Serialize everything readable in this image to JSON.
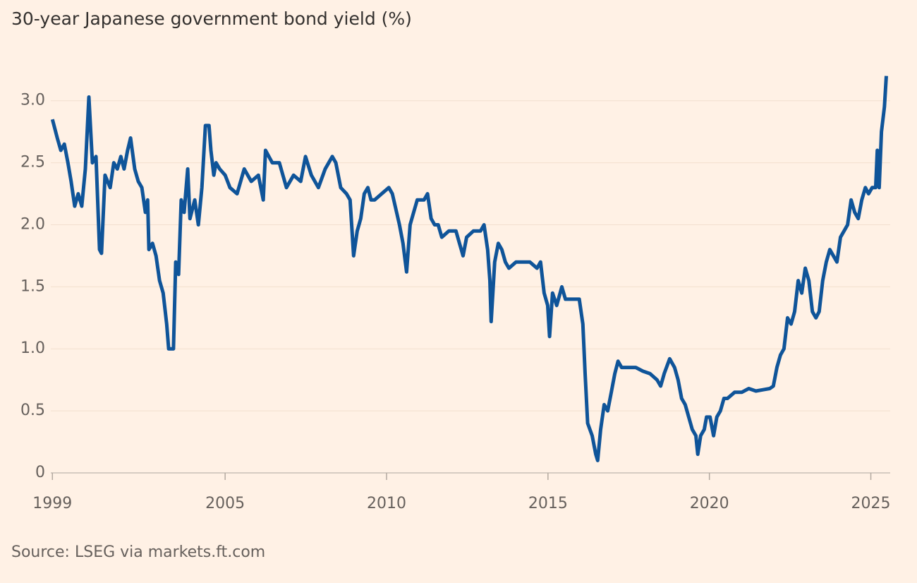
{
  "chart_data": {
    "type": "line",
    "title": "30-year Japanese government bond yield (%)",
    "source": "Source: LSEG via markets.ft.com",
    "color": "#0f5499",
    "grid": true,
    "xlim": [
      1999.6,
      2025.6
    ],
    "xticks": [
      {
        "value": 1999.65,
        "label": "1999"
      },
      2005,
      2010,
      2015,
      2020,
      2025
    ],
    "ylim": [
      0,
      3.3
    ],
    "yticks": [
      0,
      0.5,
      {
        "value": 1,
        "label": "1.0"
      },
      1.5,
      {
        "value": 2,
        "label": "2.0"
      },
      2.5,
      {
        "value": 3,
        "label": "3.0"
      }
    ],
    "x": [
      1999.65,
      1999.8,
      1999.91,
      2000.02,
      2000.13,
      2000.23,
      2000.34,
      2000.45,
      2000.56,
      2000.67,
      2000.78,
      2000.89,
      2001.0,
      2001.11,
      2001.17,
      2001.28,
      2001.44,
      2001.55,
      2001.66,
      2001.77,
      2001.87,
      2001.98,
      2002.07,
      2002.2,
      2002.31,
      2002.42,
      2002.53,
      2002.6,
      2002.64,
      2002.75,
      2002.86,
      2002.97,
      2003.08,
      2003.19,
      2003.25,
      2003.4,
      2003.47,
      2003.56,
      2003.64,
      2003.73,
      2003.84,
      2003.91,
      2004.06,
      2004.17,
      2004.28,
      2004.39,
      2004.5,
      2004.56,
      2004.65,
      2004.72,
      2004.83,
      2005.0,
      2005.15,
      2005.37,
      2005.59,
      2005.81,
      2006.03,
      2006.18,
      2006.25,
      2006.46,
      2006.68,
      2006.9,
      2007.12,
      2007.34,
      2007.49,
      2007.67,
      2007.89,
      2008.1,
      2008.32,
      2008.43,
      2008.58,
      2008.76,
      2008.87,
      2008.98,
      2009.09,
      2009.2,
      2009.31,
      2009.42,
      2009.52,
      2009.63,
      2009.85,
      2010.07,
      2010.18,
      2010.4,
      2010.51,
      2010.62,
      2010.73,
      2010.84,
      2010.95,
      2011.16,
      2011.27,
      2011.38,
      2011.49,
      2011.6,
      2011.71,
      2011.93,
      2012.15,
      2012.26,
      2012.37,
      2012.48,
      2012.69,
      2012.91,
      2013.02,
      2013.13,
      2013.2,
      2013.24,
      2013.35,
      2013.46,
      2013.57,
      2013.68,
      2013.79,
      2014.01,
      2014.22,
      2014.44,
      2014.66,
      2014.77,
      2014.88,
      2014.99,
      2015.05,
      2015.14,
      2015.27,
      2015.43,
      2015.54,
      2015.75,
      2015.97,
      2016.08,
      2016.15,
      2016.23,
      2016.37,
      2016.48,
      2016.54,
      2016.63,
      2016.74,
      2016.85,
      2016.96,
      2017.07,
      2017.17,
      2017.28,
      2017.5,
      2017.72,
      2017.94,
      2018.16,
      2018.38,
      2018.49,
      2018.6,
      2018.77,
      2018.92,
      2019.03,
      2019.14,
      2019.25,
      2019.36,
      2019.47,
      2019.58,
      2019.64,
      2019.73,
      2019.84,
      2019.91,
      2020.02,
      2020.13,
      2020.23,
      2020.34,
      2020.45,
      2020.56,
      2020.78,
      2021.0,
      2021.22,
      2021.44,
      2021.66,
      2021.87,
      2021.98,
      2022.09,
      2022.2,
      2022.31,
      2022.42,
      2022.53,
      2022.64,
      2022.75,
      2022.86,
      2022.97,
      2023.08,
      2023.19,
      2023.3,
      2023.4,
      2023.51,
      2023.62,
      2023.73,
      2023.84,
      2023.95,
      2024.06,
      2024.17,
      2024.28,
      2024.39,
      2024.5,
      2024.61,
      2024.72,
      2024.83,
      2024.93,
      2025.04,
      2025.15,
      2025.2,
      2025.26,
      2025.33,
      2025.42,
      2025.48
    ],
    "values": [
      2.85,
      2.7,
      2.6,
      2.65,
      2.5,
      2.35,
      2.15,
      2.25,
      2.15,
      2.45,
      3.03,
      2.5,
      2.55,
      1.8,
      1.77,
      2.4,
      2.3,
      2.5,
      2.45,
      2.55,
      2.45,
      2.6,
      2.7,
      2.45,
      2.35,
      2.3,
      2.1,
      2.2,
      1.8,
      1.85,
      1.75,
      1.55,
      1.45,
      1.2,
      1.0,
      1.0,
      1.7,
      1.6,
      2.2,
      2.1,
      2.45,
      2.05,
      2.2,
      2.0,
      2.3,
      2.8,
      2.8,
      2.6,
      2.4,
      2.5,
      2.45,
      2.4,
      2.3,
      2.25,
      2.45,
      2.35,
      2.4,
      2.2,
      2.6,
      2.5,
      2.5,
      2.3,
      2.4,
      2.35,
      2.55,
      2.4,
      2.3,
      2.45,
      2.55,
      2.5,
      2.3,
      2.25,
      2.2,
      1.75,
      1.95,
      2.05,
      2.25,
      2.3,
      2.2,
      2.2,
      2.25,
      2.3,
      2.25,
      2.0,
      1.85,
      1.62,
      2.0,
      2.1,
      2.2,
      2.2,
      2.25,
      2.05,
      2.0,
      2.0,
      1.9,
      1.95,
      1.95,
      1.85,
      1.75,
      1.9,
      1.95,
      1.95,
      2.0,
      1.8,
      1.55,
      1.22,
      1.7,
      1.85,
      1.8,
      1.7,
      1.65,
      1.7,
      1.7,
      1.7,
      1.65,
      1.7,
      1.45,
      1.35,
      1.1,
      1.45,
      1.35,
      1.5,
      1.4,
      1.4,
      1.4,
      1.2,
      0.8,
      0.4,
      0.3,
      0.15,
      0.1,
      0.35,
      0.55,
      0.5,
      0.65,
      0.8,
      0.9,
      0.85,
      0.85,
      0.85,
      0.82,
      0.8,
      0.75,
      0.7,
      0.8,
      0.92,
      0.85,
      0.75,
      0.6,
      0.55,
      0.45,
      0.35,
      0.3,
      0.15,
      0.3,
      0.35,
      0.45,
      0.45,
      0.3,
      0.45,
      0.5,
      0.6,
      0.6,
      0.65,
      0.65,
      0.68,
      0.66,
      0.67,
      0.68,
      0.7,
      0.85,
      0.95,
      1.0,
      1.25,
      1.2,
      1.3,
      1.55,
      1.45,
      1.65,
      1.55,
      1.3,
      1.25,
      1.3,
      1.55,
      1.7,
      1.8,
      1.75,
      1.7,
      1.9,
      1.95,
      2.0,
      2.2,
      2.1,
      2.05,
      2.2,
      2.3,
      2.25,
      2.3,
      2.3,
      2.6,
      2.3,
      2.75,
      2.95,
      3.2
    ]
  }
}
